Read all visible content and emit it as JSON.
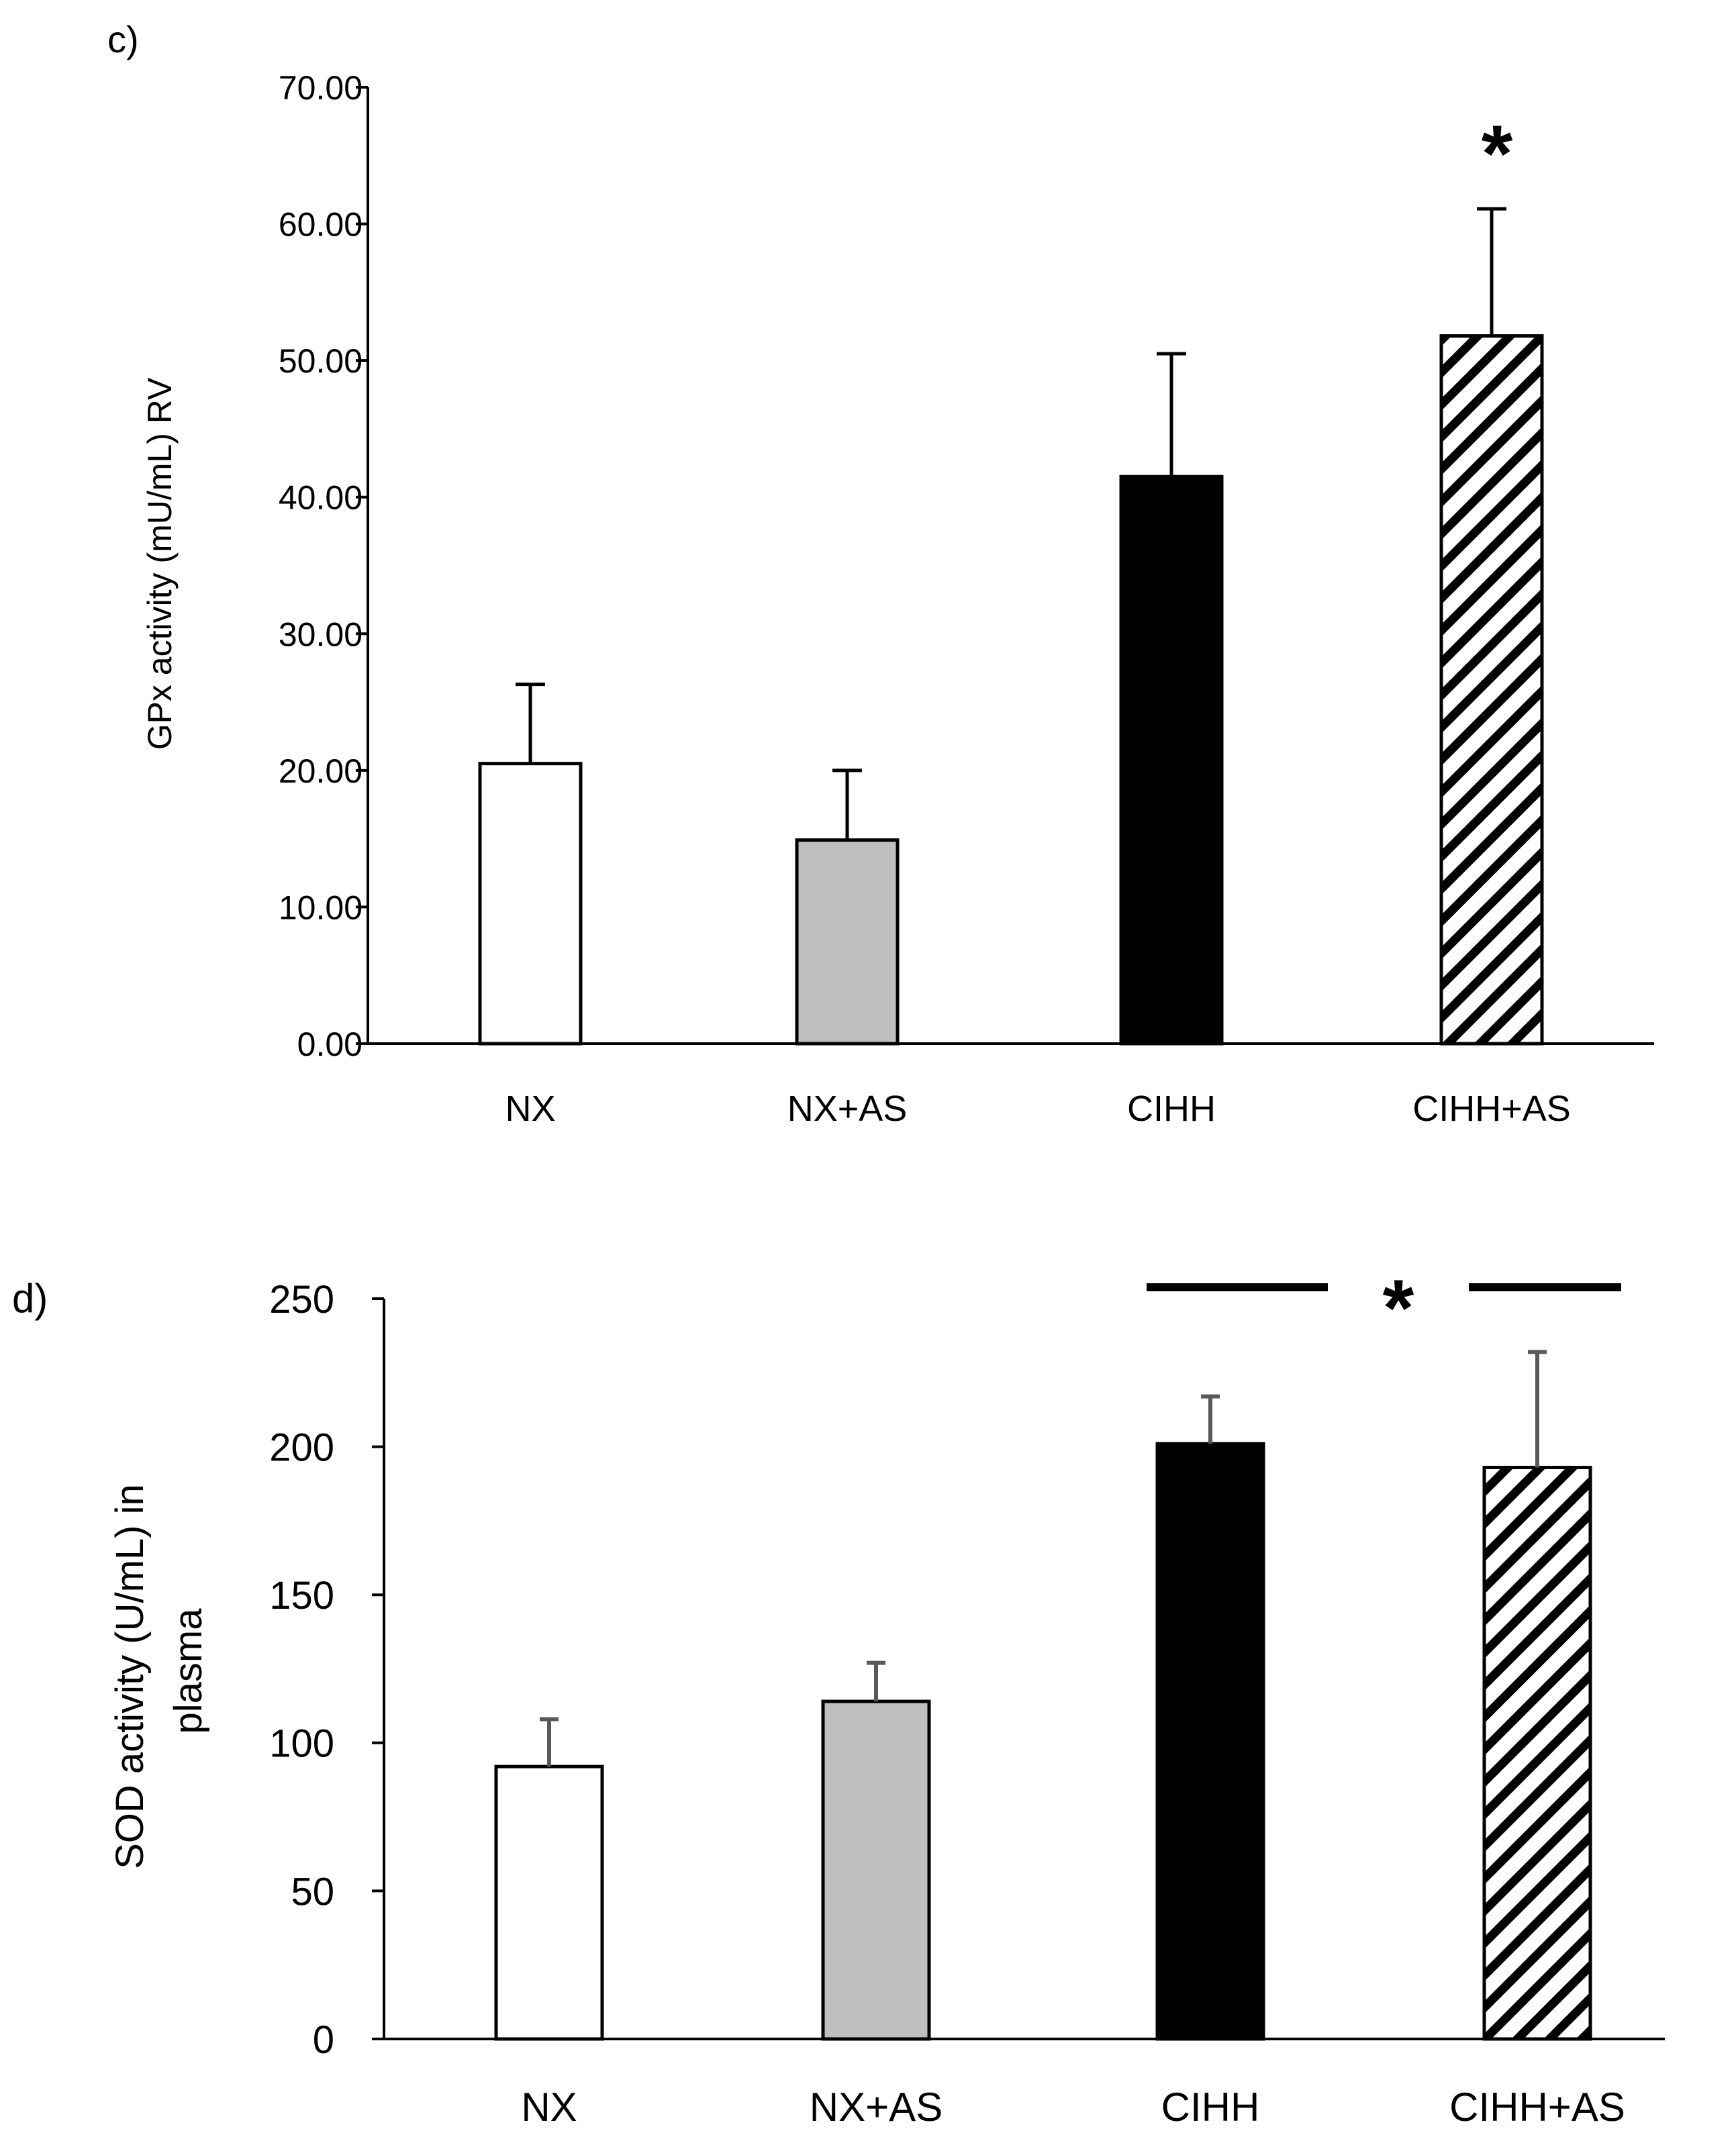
{
  "chart_data": [
    {
      "type": "bar",
      "panel_label": "c)",
      "ylabel": "GPx activity (mU/mL) RV",
      "categories": [
        "NX",
        "NX+AS",
        "CIHH",
        "CIHH+AS"
      ],
      "values": [
        20.5,
        14.9,
        41.5,
        51.8
      ],
      "error_upper": [
        26.3,
        20.0,
        50.5,
        61.1
      ],
      "fills": [
        "#ffffff",
        "#bfbfbf",
        "#000000",
        "hatch"
      ],
      "ylim": [
        0,
        70
      ],
      "yticks": [
        0,
        10,
        20,
        30,
        40,
        50,
        60,
        70
      ],
      "tick_labels": [
        "0.00",
        "10.00",
        "20.00",
        "30.00",
        "40.00",
        "50.00",
        "60.00",
        "70.00"
      ],
      "annotation": {
        "text": "*",
        "category_index": 3
      }
    },
    {
      "type": "bar",
      "panel_label": "d)",
      "ylabel_lines": [
        "SOD activity (U/mL) in",
        "plasma"
      ],
      "categories": [
        "NX",
        "NX+AS",
        "CIHH",
        "CIHH+AS"
      ],
      "values": [
        92,
        114,
        201,
        193
      ],
      "error_upper": [
        108,
        127,
        217,
        232
      ],
      "fills": [
        "#ffffff",
        "#bfbfbf",
        "#000000",
        "hatch"
      ],
      "ylim": [
        0,
        250
      ],
      "yticks": [
        0,
        50,
        100,
        150,
        200,
        250
      ],
      "tick_labels": [
        "0",
        "50",
        "100",
        "150",
        "200",
        "250"
      ],
      "annotation": {
        "text": "*",
        "bracket_between": [
          2,
          3
        ]
      }
    }
  ]
}
